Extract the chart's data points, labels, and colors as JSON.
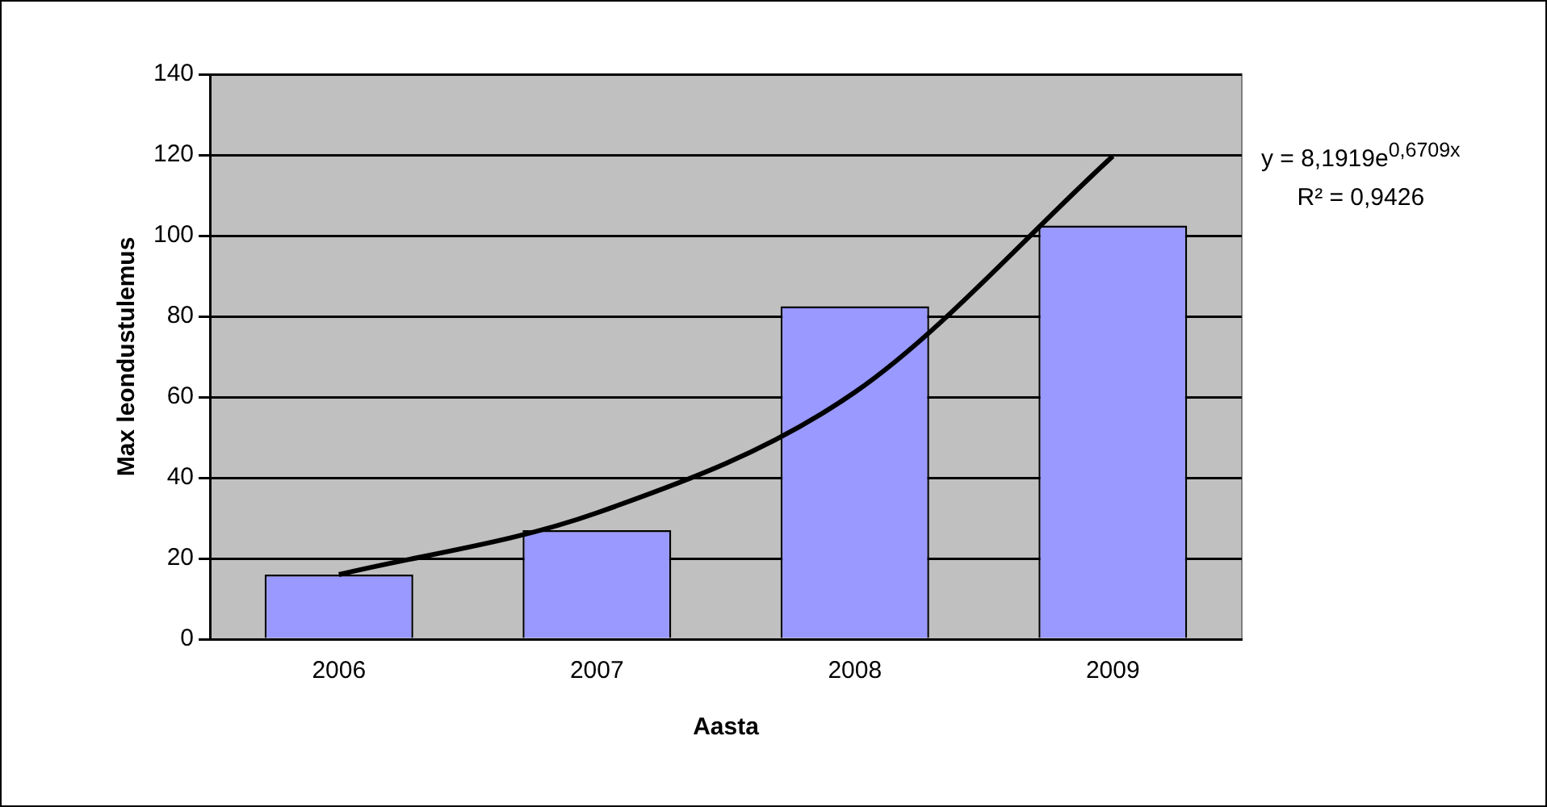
{
  "chart_data": {
    "type": "bar",
    "xlabel": "Aasta",
    "ylabel": "Max leondustulemus",
    "categories": [
      "2006",
      "2007",
      "2008",
      "2009"
    ],
    "series": [
      {
        "color": "#9999ff",
        "values": [
          16,
          27,
          82.5,
          102.5
        ]
      },
      {
        "type": "line",
        "color": "#000000",
        "values": [
          16.0,
          31.3,
          61.2,
          119.7
        ]
      }
    ],
    "ylim": [
      0,
      140
    ],
    "yticks": [
      0,
      20,
      40,
      60,
      80,
      100,
      120,
      140
    ],
    "grid": "y",
    "legend": false,
    "marker": "none",
    "annotations": [
      "y = 8,1919e$^{0,6709x}$",
      "R² = 0,9426"
    ]
  }
}
